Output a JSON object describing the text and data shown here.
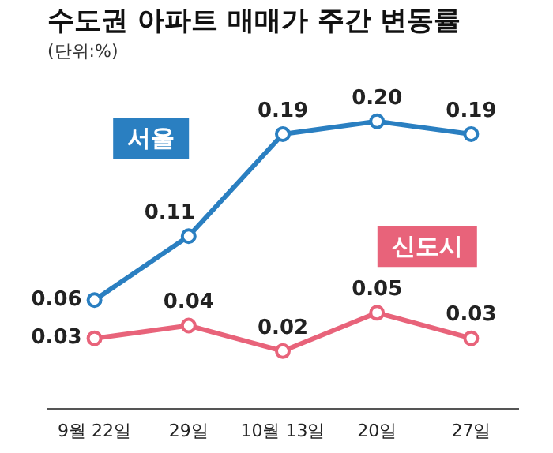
{
  "chart_data": {
    "type": "line",
    "title": "수도권 아파트 매매가 주간 변동률",
    "subtitle": "(단위:%)",
    "categories": [
      "9월 22일",
      "29일",
      "10월 13일",
      "20일",
      "27일"
    ],
    "series": [
      {
        "name": "서울",
        "color": "#2a7fc1",
        "values": [
          0.06,
          0.11,
          0.19,
          0.2,
          0.19
        ],
        "value_labels": [
          "0.06",
          "0.11",
          "0.19",
          "0.20",
          "0.19"
        ]
      },
      {
        "name": "신도시",
        "color": "#e8637a",
        "values": [
          0.03,
          0.04,
          0.02,
          0.05,
          0.03
        ],
        "value_labels": [
          "0.03",
          "0.04",
          "0.02",
          "0.05",
          "0.03"
        ]
      }
    ],
    "marker": "circle",
    "line_style": "solid",
    "grid": false,
    "tick_labels": "x"
  }
}
